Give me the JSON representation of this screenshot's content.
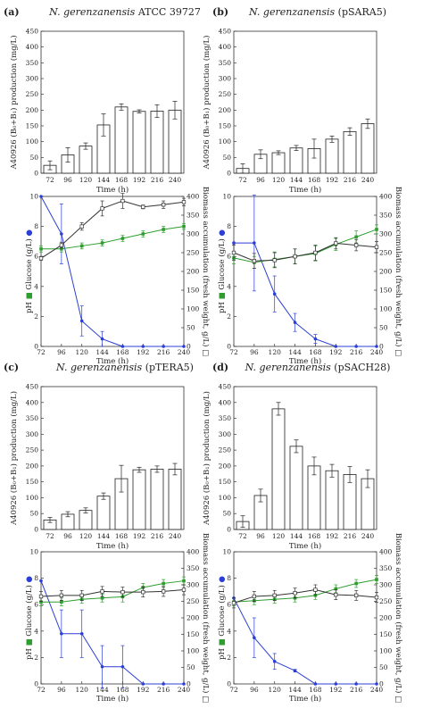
{
  "panels": [
    {
      "label": "(a)",
      "title_italic": "N. gerenzanensis",
      "title_rest": " ATCC 39727"
    },
    {
      "label": "(b)",
      "title_italic": "N. gerenzanensis",
      "title_rest": " (pSARA5)"
    },
    {
      "label": "(c)",
      "title_italic": "N. gerenzanensis",
      "title_rest": " (pTERA5)"
    },
    {
      "label": "(d)",
      "title_italic": "N. gerenzanensis",
      "title_rest": " (pSACH28)"
    }
  ],
  "colors": {
    "glucose": "#2b3fd6",
    "ph": "#2e9e2e",
    "biomass": "#333333",
    "bar": "#ffffff"
  },
  "axis_labels": {
    "bar_y": "A40926 (B₀+B₁) production (mg/L)",
    "x": "Time (h)",
    "left_y": "pH  ■   Glucose (g/L)  ●",
    "right_y": "Biomass accumulation (fresh weight, g/L)  □"
  },
  "chart_data": [
    {
      "panel": "(a)",
      "type": "bar",
      "categories": [
        "72",
        "96",
        "120",
        "144",
        "168",
        "192",
        "216",
        "240"
      ],
      "values": [
        25,
        58,
        86,
        153,
        210,
        196,
        197,
        200
      ],
      "errors": [
        14,
        23,
        10,
        35,
        10,
        5,
        20,
        28
      ],
      "ylim": [
        0,
        450
      ],
      "yticks": [
        0,
        50,
        100,
        150,
        200,
        250,
        300,
        350,
        400,
        450
      ],
      "xlabel": "Time (h)",
      "ylabel": "A40926 (B₀+B₁) production (mg/L)"
    },
    {
      "panel": "(a)",
      "type": "line",
      "x": [
        72,
        96,
        120,
        144,
        168,
        192,
        216,
        240
      ],
      "xlim": [
        72,
        240
      ],
      "ylim_left": [
        0,
        10
      ],
      "ylim_right": [
        0,
        400
      ],
      "series": [
        {
          "name": "Glucose (g/L)",
          "axis": "left",
          "values": [
            10,
            7.5,
            1.7,
            0.5,
            0,
            0,
            0,
            0
          ],
          "errors": [
            0,
            2.0,
            1.0,
            0.5,
            0,
            0,
            0,
            0
          ]
        },
        {
          "name": "pH",
          "axis": "left",
          "values": [
            6.5,
            6.5,
            6.7,
            6.9,
            7.2,
            7.5,
            7.8,
            8.0
          ],
          "errors": [
            0.2,
            0.2,
            0.2,
            0.2,
            0.2,
            0.2,
            0.2,
            0.2
          ]
        },
        {
          "name": "Biomass (fresh weight, g/L)",
          "axis": "right",
          "values": [
            235,
            270,
            320,
            368,
            388,
            372,
            378,
            385
          ],
          "errors": [
            5,
            8,
            10,
            20,
            20,
            5,
            10,
            10
          ]
        }
      ]
    },
    {
      "panel": "(b)",
      "type": "bar",
      "categories": [
        "72",
        "96",
        "120",
        "144",
        "168",
        "192",
        "216",
        "240"
      ],
      "values": [
        15,
        60,
        65,
        80,
        78,
        108,
        132,
        157
      ],
      "errors": [
        15,
        14,
        6,
        8,
        30,
        10,
        12,
        15
      ],
      "ylim": [
        0,
        450
      ],
      "yticks": [
        0,
        50,
        100,
        150,
        200,
        250,
        300,
        350,
        400,
        450
      ],
      "xlabel": "Time (h)",
      "ylabel": "A40926 (B₀+B₁) production (mg/L)"
    },
    {
      "panel": "(b)",
      "type": "line",
      "x": [
        72,
        96,
        120,
        144,
        168,
        192,
        216,
        240
      ],
      "xlim": [
        72,
        240
      ],
      "ylim_left": [
        0,
        10
      ],
      "ylim_right": [
        0,
        400
      ],
      "series": [
        {
          "name": "Glucose (g/L)",
          "axis": "left",
          "values": [
            6.9,
            6.9,
            3.5,
            1.6,
            0.5,
            0,
            0,
            0
          ],
          "errors": [
            0,
            3.2,
            1.2,
            0.6,
            0.3,
            0,
            0,
            0
          ]
        },
        {
          "name": "pH",
          "axis": "left",
          "values": [
            5.9,
            5.6,
            5.8,
            6.0,
            6.2,
            6.8,
            7.3,
            7.8
          ],
          "errors": [
            0.4,
            0.4,
            0.5,
            0.5,
            0.5,
            0.4,
            0.4,
            0.3
          ]
        },
        {
          "name": "Biomass (fresh weight, g/L)",
          "axis": "right",
          "values": [
            250,
            228,
            230,
            240,
            250,
            275,
            270,
            265
          ],
          "errors": [
            20,
            20,
            20,
            20,
            20,
            15,
            15,
            15
          ]
        }
      ]
    },
    {
      "panel": "(c)",
      "type": "bar",
      "categories": [
        "72",
        "96",
        "120",
        "144",
        "168",
        "192",
        "216",
        "240"
      ],
      "values": [
        30,
        48,
        60,
        105,
        160,
        188,
        190,
        190
      ],
      "errors": [
        8,
        8,
        8,
        10,
        42,
        8,
        10,
        18
      ],
      "ylim": [
        0,
        450
      ],
      "yticks": [
        0,
        50,
        100,
        150,
        200,
        250,
        300,
        350,
        400,
        450
      ],
      "xlabel": "Time (h)",
      "ylabel": "A40926 (B₀+B₁) production (mg/L)"
    },
    {
      "panel": "(c)",
      "type": "line",
      "x": [
        72,
        96,
        120,
        144,
        168,
        192,
        216,
        240
      ],
      "xlim": [
        72,
        240
      ],
      "ylim_left": [
        0,
        10
      ],
      "ylim_right": [
        0,
        400
      ],
      "series": [
        {
          "name": "Glucose (g/L)",
          "axis": "left",
          "values": [
            7.8,
            3.8,
            3.8,
            1.3,
            1.3,
            0,
            0,
            0
          ],
          "errors": [
            0,
            1.8,
            1.8,
            1.6,
            1.6,
            0,
            0,
            0
          ]
        },
        {
          "name": "pH",
          "axis": "left",
          "values": [
            6.2,
            6.2,
            6.4,
            6.5,
            6.6,
            7.3,
            7.6,
            7.8
          ],
          "errors": [
            0.3,
            0.3,
            0.3,
            0.3,
            0.4,
            0.3,
            0.3,
            0.3
          ]
        },
        {
          "name": "Biomass (fresh weight, g/L)",
          "axis": "right",
          "values": [
            265,
            268,
            268,
            280,
            278,
            278,
            280,
            285
          ],
          "errors": [
            15,
            15,
            15,
            15,
            15,
            15,
            15,
            15
          ]
        }
      ]
    },
    {
      "panel": "(d)",
      "type": "bar",
      "categories": [
        "72",
        "96",
        "120",
        "144",
        "168",
        "192",
        "216",
        "240"
      ],
      "values": [
        25,
        107,
        380,
        262,
        200,
        185,
        173,
        160
      ],
      "errors": [
        18,
        20,
        20,
        20,
        28,
        20,
        25,
        28
      ],
      "ylim": [
        0,
        450
      ],
      "yticks": [
        0,
        50,
        100,
        150,
        200,
        250,
        300,
        350,
        400,
        450
      ],
      "xlabel": "Time (h)",
      "ylabel": "A40926 (B₀+B₁) production (mg/L)"
    },
    {
      "panel": "(d)",
      "type": "line",
      "x": [
        72,
        96,
        120,
        144,
        168,
        192,
        216,
        240
      ],
      "xlim": [
        72,
        240
      ],
      "ylim_left": [
        0,
        10
      ],
      "ylim_right": [
        0,
        400
      ],
      "series": [
        {
          "name": "Glucose (g/L)",
          "axis": "left",
          "values": [
            6.5,
            3.5,
            1.7,
            1.0,
            0,
            0,
            0,
            0
          ],
          "errors": [
            0,
            1.5,
            0.6,
            0.1,
            0,
            0,
            0,
            0
          ]
        },
        {
          "name": "pH",
          "axis": "left",
          "values": [
            6.2,
            6.3,
            6.4,
            6.5,
            6.7,
            7.2,
            7.6,
            7.9
          ],
          "errors": [
            0.3,
            0.3,
            0.3,
            0.3,
            0.3,
            0.3,
            0.3,
            0.3
          ]
        },
        {
          "name": "Biomass (fresh weight, g/L)",
          "axis": "right",
          "values": [
            245,
            265,
            268,
            275,
            285,
            270,
            268,
            262
          ],
          "errors": [
            15,
            15,
            15,
            15,
            15,
            15,
            15,
            15
          ]
        }
      ]
    }
  ]
}
